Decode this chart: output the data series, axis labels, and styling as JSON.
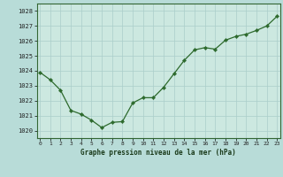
{
  "hours": [
    0,
    1,
    2,
    3,
    4,
    5,
    6,
    7,
    8,
    9,
    10,
    11,
    12,
    13,
    14,
    15,
    16,
    17,
    18,
    19,
    20,
    21,
    22,
    23
  ],
  "pressure": [
    1023.9,
    1023.4,
    1022.7,
    1021.35,
    1021.1,
    1020.7,
    1020.2,
    1020.55,
    1020.6,
    1021.85,
    1022.2,
    1022.2,
    1022.9,
    1023.8,
    1024.7,
    1025.4,
    1025.55,
    1025.45,
    1026.05,
    1026.3,
    1026.45,
    1026.7,
    1027.0,
    1027.65
  ],
  "line_color": "#2d6a2d",
  "marker_color": "#2d6a2d",
  "plot_bg": "#cce8e0",
  "outer_bg": "#b8dcd8",
  "grid_color": "#aaceca",
  "xlabel": "Graphe pression niveau de la mer (hPa)",
  "ylim": [
    1019.5,
    1028.5
  ],
  "yticks": [
    1020,
    1021,
    1022,
    1023,
    1024,
    1025,
    1026,
    1027,
    1028
  ],
  "xticks": [
    0,
    1,
    2,
    3,
    4,
    5,
    6,
    7,
    8,
    9,
    10,
    11,
    12,
    13,
    14,
    15,
    16,
    17,
    18,
    19,
    20,
    21,
    22,
    23
  ],
  "xlim": [
    -0.3,
    23.3
  ]
}
